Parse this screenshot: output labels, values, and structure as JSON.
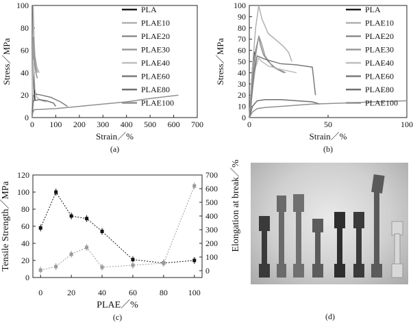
{
  "chart_data": [
    {
      "type": "line",
      "panel_label": "(a)",
      "xlabel": "Strain／%",
      "ylabel": "Stress／MPa",
      "xlim": [
        0,
        700
      ],
      "ylim": [
        0,
        100
      ],
      "xticks": [
        "0",
        "100",
        "200",
        "300",
        "400",
        "500",
        "600",
        "700"
      ],
      "yticks": [
        "0",
        "20",
        "40",
        "60",
        "80",
        "100"
      ],
      "legend": [
        "PLA",
        "PLAE10",
        "PLAE20",
        "PLAE30",
        "PLAE40",
        "PLAE60",
        "PLAE80",
        "PLAE100"
      ],
      "series": [
        {
          "name": "PLA",
          "color": "#1a1a1a",
          "x": [
            0,
            2,
            4,
            6,
            8,
            10,
            12
          ],
          "y": [
            0,
            35,
            55,
            45,
            30,
            20,
            15
          ]
        },
        {
          "name": "PLAE10",
          "color": "#b0b0b0",
          "x": [
            0,
            2,
            4,
            6,
            8,
            12,
            20,
            25,
            30
          ],
          "y": [
            0,
            60,
            100,
            85,
            70,
            55,
            45,
            42,
            40
          ]
        },
        {
          "name": "PLAE20",
          "color": "#8c8c8c",
          "x": [
            0,
            3,
            5,
            8,
            12,
            18,
            22
          ],
          "y": [
            0,
            50,
            72,
            55,
            45,
            38,
            35
          ]
        },
        {
          "name": "PLAE30",
          "color": "#9a9a9a",
          "x": [
            0,
            3,
            6,
            10,
            15,
            22
          ],
          "y": [
            0,
            40,
            68,
            55,
            45,
            40
          ]
        },
        {
          "name": "PLAE40",
          "color": "#bdbdbd",
          "x": [
            0,
            3,
            5,
            8,
            12,
            20,
            40,
            60
          ],
          "y": [
            0,
            30,
            52,
            40,
            25,
            18,
            15,
            14
          ]
        },
        {
          "name": "PLAE60",
          "color": "#7a7a7a",
          "x": [
            0,
            2,
            5,
            15,
            40,
            80,
            120,
            150
          ],
          "y": [
            0,
            10,
            20,
            21,
            20,
            18,
            14,
            10
          ]
        },
        {
          "name": "PLAE80",
          "color": "#6e6e6e",
          "x": [
            0,
            2,
            5,
            30,
            60,
            90,
            100
          ],
          "y": [
            0,
            8,
            15,
            16,
            15,
            13,
            10
          ]
        },
        {
          "name": "PLAE100",
          "color": "#8f8f8f",
          "x": [
            0,
            2,
            8,
            100,
            200,
            300,
            400,
            500,
            620
          ],
          "y": [
            0,
            4,
            7,
            8,
            10,
            12,
            14,
            17,
            20
          ]
        }
      ]
    },
    {
      "type": "line",
      "panel_label": "(b)",
      "xlabel": "Strain／%",
      "ylabel": "Stress／MPa",
      "xlim": [
        0,
        100
      ],
      "ylim": [
        0,
        100
      ],
      "xticks": [
        "0",
        "50",
        "100"
      ],
      "yticks": [
        "0",
        "10",
        "20",
        "30",
        "40",
        "50",
        "60",
        "70",
        "80",
        "90",
        "100"
      ],
      "legend": [
        "PLA",
        "PLAE10",
        "PLAE20",
        "PLAE30",
        "PLAE40",
        "PLAE60",
        "PLAE80",
        "PLAE100"
      ],
      "series": [
        {
          "name": "PLA",
          "color": "#1a1a1a",
          "x": [
            0,
            1,
            2,
            3,
            4
          ],
          "y": [
            0,
            20,
            45,
            57,
            59
          ]
        },
        {
          "name": "PLAE10",
          "color": "#b0b0b0",
          "x": [
            0,
            2,
            4,
            6,
            8,
            12,
            18,
            22,
            25,
            27
          ],
          "y": [
            0,
            45,
            80,
            100,
            88,
            75,
            68,
            63,
            58,
            50
          ]
        },
        {
          "name": "PLAE20",
          "color": "#8c8c8c",
          "x": [
            0,
            2,
            4,
            6,
            7,
            9,
            12,
            16,
            20,
            23
          ],
          "y": [
            0,
            35,
            60,
            72,
            65,
            56,
            50,
            45,
            42,
            40
          ]
        },
        {
          "name": "PLAE30",
          "color": "#9a9a9a",
          "x": [
            0,
            2,
            4,
            6,
            8,
            10,
            15,
            22
          ],
          "y": [
            0,
            30,
            55,
            73,
            65,
            55,
            45,
            40
          ]
        },
        {
          "name": "PLAE40",
          "color": "#bdbdbd",
          "x": [
            0,
            2,
            4,
            6,
            8,
            12,
            20,
            30
          ],
          "y": [
            0,
            25,
            45,
            53,
            50,
            46,
            43,
            40
          ]
        },
        {
          "name": "PLAE60",
          "color": "#7a7a7a",
          "x": [
            0,
            1,
            2,
            3,
            5,
            10,
            20,
            30,
            40,
            42
          ],
          "y": [
            0,
            10,
            25,
            40,
            55,
            52,
            48,
            47,
            45,
            20
          ]
        },
        {
          "name": "PLAE80",
          "color": "#6e6e6e",
          "x": [
            0,
            2,
            5,
            10,
            20,
            30,
            40,
            45
          ],
          "y": [
            0,
            10,
            15,
            16,
            16,
            15,
            14,
            12
          ]
        },
        {
          "name": "PLAE100",
          "color": "#8f8f8f",
          "x": [
            0,
            2,
            5,
            10,
            20,
            40,
            60,
            80,
            100
          ],
          "y": [
            0,
            5,
            8,
            9,
            10,
            12,
            13,
            14,
            15
          ]
        }
      ]
    },
    {
      "type": "line",
      "panel_label": "(c)",
      "xlabel": "PLAE／%",
      "ylabel": "Tensile Strength／MPa",
      "y2label": "Elongation at break／%",
      "xlim": [
        -5,
        105
      ],
      "ylim": [
        0,
        120
      ],
      "y2lim": [
        -50,
        700
      ],
      "xticks": [
        "0",
        "20",
        "40",
        "60",
        "80",
        "100"
      ],
      "yticks": [
        "0",
        "20",
        "40",
        "60",
        "80",
        "100",
        "120"
      ],
      "y2ticks": [
        "0",
        "100",
        "200",
        "300",
        "400",
        "500",
        "600",
        "700"
      ],
      "x": [
        0,
        10,
        20,
        30,
        40,
        60,
        80,
        100
      ],
      "series": [
        {
          "name": "Tensile Strength",
          "axis": "left",
          "color": "#111111",
          "values": [
            58,
            100,
            72,
            69,
            54,
            21,
            17,
            20
          ]
        },
        {
          "name": "Elongation at break",
          "axis": "right",
          "color": "#9a9a9a",
          "values": [
            4,
            30,
            120,
            170,
            25,
            40,
            55,
            620
          ]
        }
      ]
    }
  ],
  "photo": {
    "panel_label": "(d)"
  }
}
